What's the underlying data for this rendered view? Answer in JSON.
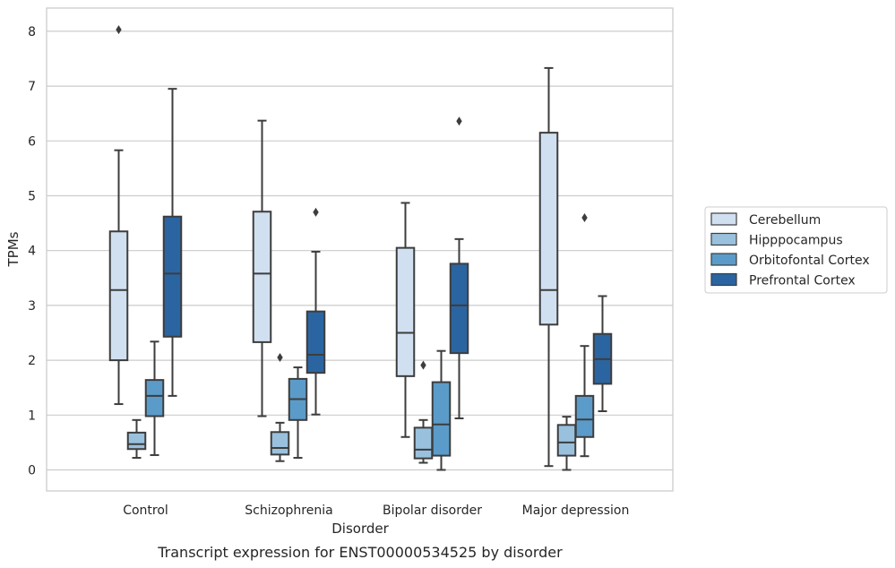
{
  "chart_data": {
    "type": "box",
    "caption": "Transcript expression for ENST00000534525 by disorder",
    "xlabel": "Disorder",
    "ylabel": "TPMs",
    "ylim": [
      -0.4,
      8.45
    ],
    "yticks": [
      0,
      1,
      2,
      3,
      4,
      5,
      6,
      7,
      8
    ],
    "grid": "horizontal",
    "legend_position": "right",
    "categories": [
      "Control",
      "Schizophrenia",
      "Bipolar disorder",
      "Major depression"
    ],
    "series": [
      {
        "name": "Cerebellum",
        "color": "#d1e0f1",
        "boxes": [
          {
            "whislo": 1.2,
            "q1": 2.0,
            "med": 3.28,
            "q3": 4.35,
            "whishi": 5.83,
            "fliers": [
              8.03
            ]
          },
          {
            "whislo": 0.98,
            "q1": 2.33,
            "med": 3.58,
            "q3": 4.71,
            "whishi": 6.37,
            "fliers": []
          },
          {
            "whislo": 0.6,
            "q1": 1.71,
            "med": 2.5,
            "q3": 4.05,
            "whishi": 4.87,
            "fliers": []
          },
          {
            "whislo": 0.07,
            "q1": 2.65,
            "med": 3.28,
            "q3": 6.15,
            "whishi": 7.33,
            "fliers": []
          }
        ]
      },
      {
        "name": "Hipppocampus",
        "color": "#99c1de",
        "boxes": [
          {
            "whislo": 0.22,
            "q1": 0.38,
            "med": 0.47,
            "q3": 0.68,
            "whishi": 0.91,
            "fliers": []
          },
          {
            "whislo": 0.16,
            "q1": 0.28,
            "med": 0.4,
            "q3": 0.69,
            "whishi": 0.86,
            "fliers": [
              2.05
            ]
          },
          {
            "whislo": 0.13,
            "q1": 0.21,
            "med": 0.37,
            "q3": 0.77,
            "whishi": 0.91,
            "fliers": [
              1.91
            ]
          },
          {
            "whislo": 0.0,
            "q1": 0.26,
            "med": 0.5,
            "q3": 0.82,
            "whishi": 0.97,
            "fliers": []
          }
        ]
      },
      {
        "name": "Orbitofontal Cortex",
        "color": "#5b9bc9",
        "boxes": [
          {
            "whislo": 0.27,
            "q1": 0.98,
            "med": 1.35,
            "q3": 1.64,
            "whishi": 2.34,
            "fliers": []
          },
          {
            "whislo": 0.22,
            "q1": 0.91,
            "med": 1.29,
            "q3": 1.66,
            "whishi": 1.87,
            "fliers": []
          },
          {
            "whislo": 0.0,
            "q1": 0.26,
            "med": 0.83,
            "q3": 1.6,
            "whishi": 2.17,
            "fliers": []
          },
          {
            "whislo": 0.25,
            "q1": 0.6,
            "med": 0.92,
            "q3": 1.35,
            "whishi": 2.26,
            "fliers": [
              4.6
            ]
          }
        ]
      },
      {
        "name": "Prefrontal Cortex",
        "color": "#2a65a1",
        "boxes": [
          {
            "whislo": 1.35,
            "q1": 2.43,
            "med": 3.58,
            "q3": 4.62,
            "whishi": 6.95,
            "fliers": []
          },
          {
            "whislo": 1.01,
            "q1": 1.77,
            "med": 2.1,
            "q3": 2.89,
            "whishi": 3.98,
            "fliers": [
              4.7
            ]
          },
          {
            "whislo": 0.94,
            "q1": 2.13,
            "med": 3.0,
            "q3": 3.76,
            "whishi": 4.21,
            "fliers": [
              6.36
            ]
          },
          {
            "whislo": 1.07,
            "q1": 1.57,
            "med": 2.02,
            "q3": 2.48,
            "whishi": 3.17,
            "fliers": []
          }
        ]
      }
    ]
  }
}
